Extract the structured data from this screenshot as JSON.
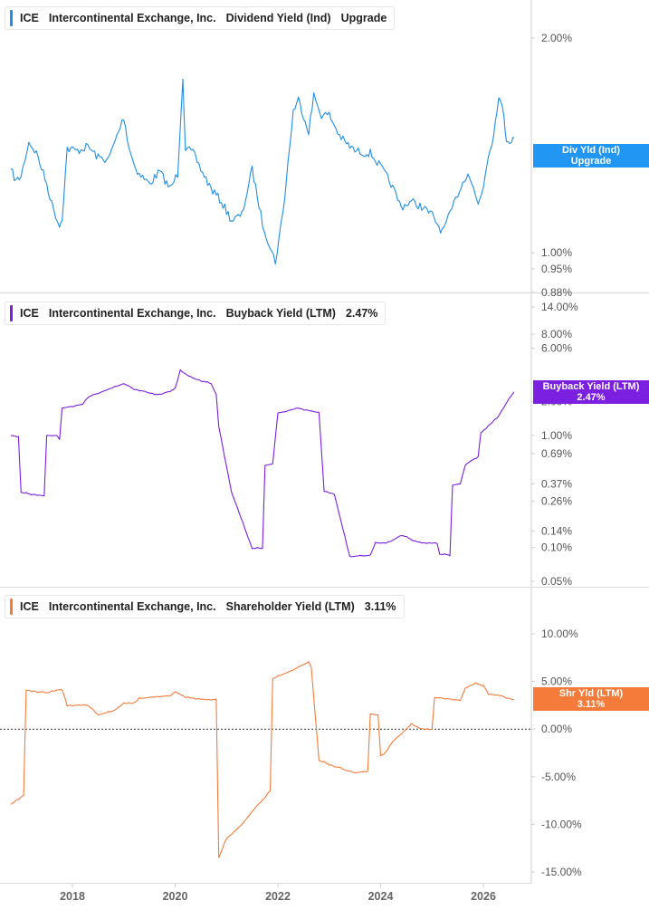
{
  "panels": [
    {
      "ticker": "ICE",
      "company": "Intercontinental Exchange, Inc.",
      "metric": "Dividend Yield (Ind)",
      "current_label": "Upgrade",
      "tag_line1": "Div Yld (Ind)",
      "tag_line2": "Upgrade",
      "color": "#1f8ee8",
      "tag_color": "#2196f3"
    },
    {
      "ticker": "ICE",
      "company": "Intercontinental Exchange, Inc.",
      "metric": "Buyback Yield (LTM)",
      "current_label": "2.47%",
      "tag_line1": "Buyback Yield (LTM)",
      "tag_line2": "2.47%",
      "color": "#7b1fe0",
      "tag_color": "#7b1fe0"
    },
    {
      "ticker": "ICE",
      "company": "Intercontinental Exchange, Inc.",
      "metric": "Shareholder Yield (LTM)",
      "current_label": "3.11%",
      "tag_line1": "Shr Yld (LTM)",
      "tag_line2": "3.11%",
      "color": "#f47b3a",
      "tag_color": "#f47b3a"
    }
  ],
  "chart_data": [
    {
      "type": "line",
      "name": "Dividend Yield (Ind)",
      "yscale": "log",
      "ylim": [
        0.88,
        2.35
      ],
      "yticks": [
        "2.00%",
        "1.00%",
        "0.95%",
        "0.88%"
      ],
      "ytick_values": [
        2.0,
        1.0,
        0.95,
        0.88
      ],
      "x": [
        2016.8,
        2016.9,
        2017.0,
        2017.15,
        2017.3,
        2017.5,
        2017.6,
        2017.75,
        2017.8,
        2017.9,
        2018.1,
        2018.3,
        2018.5,
        2018.7,
        2018.9,
        2019.0,
        2019.1,
        2019.2,
        2019.3,
        2019.5,
        2019.7,
        2019.9,
        2020.05,
        2020.15,
        2020.2,
        2020.35,
        2020.5,
        2020.7,
        2020.9,
        2021.1,
        2021.3,
        2021.5,
        2021.7,
        2021.85,
        2021.95,
        2022.1,
        2022.3,
        2022.4,
        2022.6,
        2022.7,
        2022.85,
        2023.0,
        2023.2,
        2023.3,
        2023.5,
        2023.7,
        2023.8,
        2024.0,
        2024.2,
        2024.4,
        2024.6,
        2024.8,
        2025.0,
        2025.2,
        2025.35,
        2025.5,
        2025.7,
        2025.9,
        2026.0,
        2026.1,
        2026.2,
        2026.3,
        2026.4,
        2026.45,
        2026.55,
        2026.6
      ],
      "y": [
        1.31,
        1.26,
        1.28,
        1.43,
        1.38,
        1.25,
        1.17,
        1.09,
        1.12,
        1.4,
        1.39,
        1.41,
        1.36,
        1.35,
        1.48,
        1.55,
        1.41,
        1.33,
        1.29,
        1.25,
        1.3,
        1.23,
        1.29,
        1.77,
        1.4,
        1.38,
        1.31,
        1.23,
        1.18,
        1.11,
        1.13,
        1.31,
        1.1,
        1.02,
        0.97,
        1.14,
        1.58,
        1.64,
        1.48,
        1.66,
        1.56,
        1.56,
        1.46,
        1.43,
        1.39,
        1.38,
        1.38,
        1.32,
        1.25,
        1.16,
        1.18,
        1.16,
        1.13,
        1.07,
        1.13,
        1.21,
        1.3,
        1.17,
        1.24,
        1.38,
        1.46,
        1.67,
        1.55,
        1.44,
        1.44,
        1.44
      ]
    },
    {
      "type": "line",
      "name": "Buyback Yield (LTM)",
      "yscale": "log",
      "ylim": [
        0.05,
        14.0
      ],
      "yticks": [
        "14.00%",
        "8.00%",
        "6.00%",
        "2.00%",
        "1.00%",
        "0.69%",
        "0.37%",
        "0.26%",
        "0.14%",
        "0.10%",
        "0.05%"
      ],
      "ytick_values": [
        14.0,
        8.0,
        6.0,
        2.0,
        1.0,
        0.69,
        0.37,
        0.26,
        0.14,
        0.1,
        0.05
      ],
      "x": [
        2016.8,
        2016.95,
        2017.0,
        2017.2,
        2017.45,
        2017.5,
        2017.7,
        2017.75,
        2017.8,
        2018.2,
        2018.3,
        2019.0,
        2019.2,
        2019.5,
        2019.7,
        2020.0,
        2020.1,
        2020.3,
        2020.7,
        2020.8,
        2020.85,
        2021.1,
        2021.5,
        2021.7,
        2021.75,
        2021.9,
        2022.0,
        2022.1,
        2022.35,
        2022.4,
        2022.8,
        2022.9,
        2023.1,
        2023.4,
        2023.5,
        2023.8,
        2023.9,
        2024.1,
        2024.3,
        2024.4,
        2024.65,
        2024.8,
        2025.1,
        2025.15,
        2025.35,
        2025.4,
        2025.55,
        2025.65,
        2025.9,
        2025.95,
        2026.3,
        2026.4,
        2026.6
      ],
      "y": [
        1.0,
        0.98,
        0.31,
        0.3,
        0.29,
        1.0,
        1.0,
        0.92,
        1.75,
        1.9,
        2.2,
        2.9,
        2.6,
        2.4,
        2.3,
        2.6,
        3.8,
        3.3,
        2.9,
        2.3,
        1.2,
        0.31,
        0.098,
        0.099,
        0.54,
        0.56,
        1.6,
        1.6,
        1.75,
        1.75,
        1.6,
        0.32,
        0.3,
        0.082,
        0.084,
        0.085,
        0.11,
        0.11,
        0.12,
        0.13,
        0.115,
        0.11,
        0.11,
        0.087,
        0.086,
        0.36,
        0.37,
        0.55,
        0.65,
        1.05,
        1.5,
        1.8,
        2.47
      ]
    },
    {
      "type": "line",
      "name": "Shareholder Yield (LTM)",
      "yscale": "linear",
      "ylim": [
        -15.0,
        10.0
      ],
      "yticks": [
        "10.00%",
        "5.00%",
        "0.00%",
        "-5.00%",
        "-10.00%",
        "-15.00%"
      ],
      "ytick_values": [
        10,
        5,
        0,
        -5,
        -10,
        -15
      ],
      "zero_line": true,
      "x": [
        2016.8,
        2017.05,
        2017.1,
        2017.5,
        2017.8,
        2017.9,
        2018.3,
        2018.5,
        2018.8,
        2019.0,
        2019.2,
        2019.3,
        2019.6,
        2019.9,
        2020.0,
        2020.2,
        2020.3,
        2020.6,
        2020.8,
        2020.85,
        2021.0,
        2021.3,
        2021.6,
        2021.7,
        2021.85,
        2021.9,
        2022.3,
        2022.5,
        2022.6,
        2022.65,
        2022.8,
        2023.1,
        2023.5,
        2023.75,
        2023.8,
        2023.95,
        2024.0,
        2024.1,
        2024.2,
        2024.4,
        2024.6,
        2024.75,
        2024.85,
        2025.0,
        2025.05,
        2025.3,
        2025.55,
        2025.65,
        2025.85,
        2026.0,
        2026.1,
        2026.35,
        2026.45,
        2026.6
      ],
      "y": [
        -7.9,
        -7.0,
        4.1,
        3.8,
        4.2,
        2.5,
        2.5,
        1.5,
        1.9,
        2.7,
        2.7,
        3.2,
        3.4,
        3.5,
        3.9,
        3.4,
        3.3,
        3.1,
        3.1,
        -13.5,
        -11.5,
        -10.0,
        -8.0,
        -7.5,
        -6.5,
        5.3,
        6.2,
        6.8,
        7.0,
        6.5,
        -3.3,
        -3.9,
        -4.6,
        -4.4,
        1.6,
        1.5,
        -2.8,
        -2.5,
        -1.5,
        -0.5,
        0.5,
        0.1,
        0.0,
        0.0,
        3.3,
        3.2,
        3.0,
        4.3,
        4.8,
        4.6,
        3.7,
        3.5,
        3.3,
        3.11
      ]
    }
  ],
  "x_axis": {
    "ticks": [
      "2018",
      "2020",
      "2022",
      "2024",
      "2026"
    ],
    "tick_values": [
      2018,
      2020,
      2022,
      2024,
      2026
    ]
  }
}
